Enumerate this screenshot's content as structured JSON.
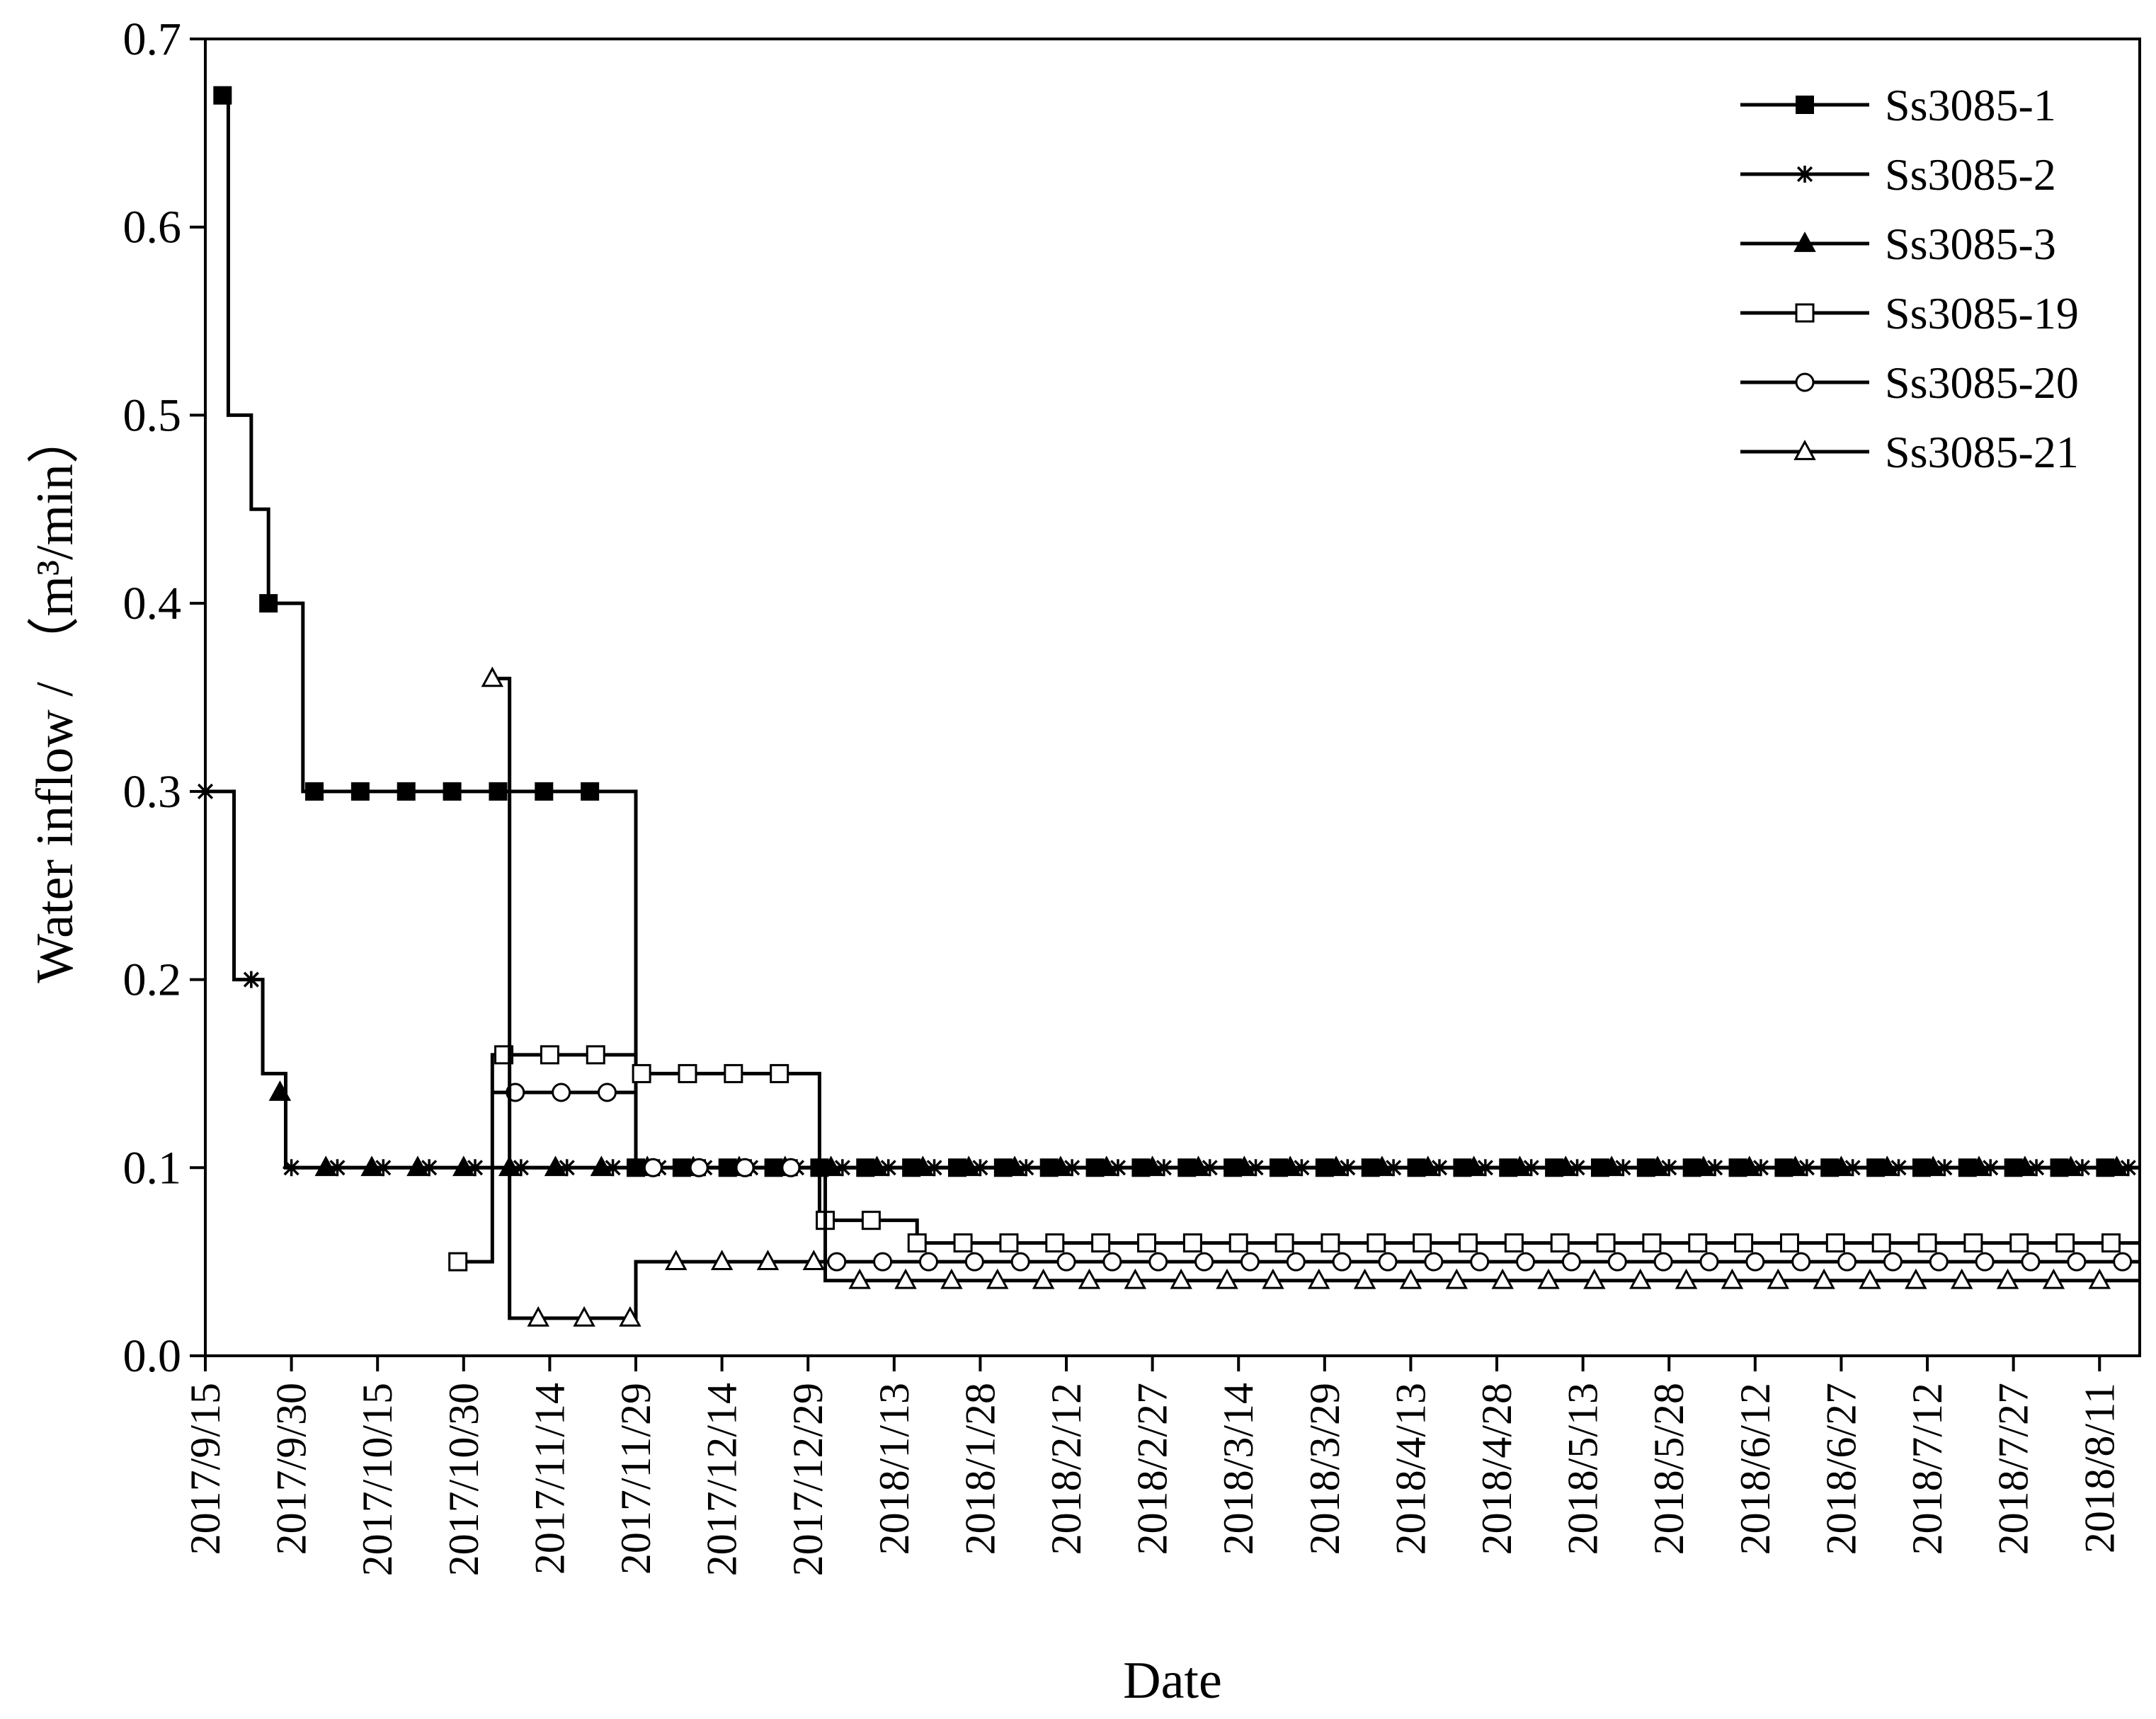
{
  "chart_data": {
    "type": "line",
    "title": "",
    "xlabel": "Date",
    "ylabel": "Water inflow / （m³/min）",
    "ylim": [
      0,
      0.7
    ],
    "xlim_days": [
      0,
      337
    ],
    "y_ticks": [
      "0.0",
      "0.1",
      "0.2",
      "0.3",
      "0.4",
      "0.5",
      "0.6",
      "0.7"
    ],
    "x_tick_labels": [
      "2017/9/15",
      "2017/9/30",
      "2017/10/15",
      "2017/10/30",
      "2017/11/14",
      "2017/11/29",
      "2017/12/14",
      "2017/12/29",
      "2018/1/13",
      "2018/1/28",
      "2018/2/12",
      "2018/2/27",
      "2018/3/14",
      "2018/3/29",
      "2018/4/13",
      "2018/4/28",
      "2018/5/13",
      "2018/5/28",
      "2018/6/12",
      "2018/6/27",
      "2018/7/12",
      "2018/7/27",
      "2018/8/11"
    ],
    "x_tick_days": [
      0,
      15,
      30,
      45,
      60,
      75,
      90,
      105,
      120,
      135,
      150,
      165,
      180,
      195,
      210,
      225,
      240,
      255,
      270,
      285,
      300,
      315,
      330
    ],
    "grid": false,
    "legend_position": "top-right",
    "series": [
      {
        "name": "Ss3085-1",
        "marker": "filled-square",
        "steps": [
          [
            3,
            0.67
          ],
          [
            4,
            0.5
          ],
          [
            8,
            0.45
          ],
          [
            11,
            0.4
          ],
          [
            17,
            0.3
          ],
          [
            75,
            0.1
          ],
          [
            337,
            0.1
          ]
        ],
        "markers_x": [
          3,
          11,
          19,
          27,
          35,
          43,
          51,
          59,
          67,
          75
        ]
      },
      {
        "name": "Ss3085-2",
        "marker": "asterisk",
        "steps": [
          [
            0,
            0.3
          ],
          [
            5,
            0.2
          ],
          [
            10,
            0.15
          ],
          [
            14,
            0.1
          ],
          [
            337,
            0.1
          ]
        ],
        "markers_x": [
          0,
          8,
          15
        ]
      },
      {
        "name": "Ss3085-3",
        "marker": "filled-triangle",
        "steps": [
          [
            13,
            0.14
          ],
          [
            14,
            0.1
          ],
          [
            337,
            0.1
          ]
        ],
        "markers_x": [
          13,
          21
        ]
      },
      {
        "name": "Ss3085-19",
        "marker": "open-square",
        "steps": [
          [
            44,
            0.05
          ],
          [
            50,
            0.16
          ],
          [
            75,
            0.15
          ],
          [
            107,
            0.072
          ],
          [
            124,
            0.06
          ],
          [
            337,
            0.06
          ]
        ],
        "markers_x": [
          44,
          52,
          60,
          68,
          76,
          84,
          92,
          100,
          108,
          116,
          124
        ]
      },
      {
        "name": "Ss3085-20",
        "marker": "open-circle",
        "steps": [
          [
            50,
            0.14
          ],
          [
            75,
            0.1
          ],
          [
            108,
            0.05
          ],
          [
            337,
            0.05
          ]
        ],
        "markers_x": [
          54,
          62,
          70,
          78,
          86,
          94,
          102,
          110,
          118
        ]
      },
      {
        "name": "Ss3085-21",
        "marker": "open-triangle",
        "steps": [
          [
            50,
            0.36
          ],
          [
            53,
            0.02
          ],
          [
            75,
            0.05
          ],
          [
            108,
            0.04
          ],
          [
            337,
            0.04
          ]
        ],
        "markers_x": [
          50,
          58,
          66,
          74,
          82,
          90,
          98,
          106,
          114,
          122
        ]
      }
    ]
  }
}
